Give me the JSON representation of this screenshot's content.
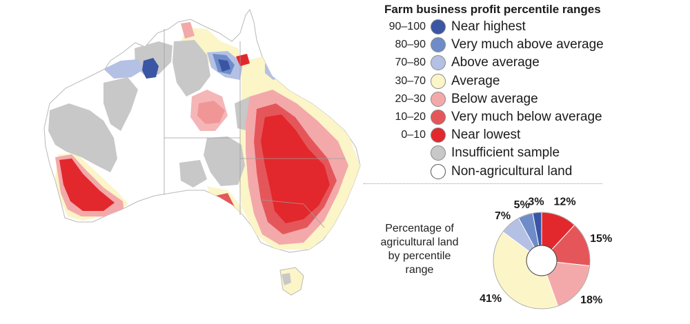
{
  "legend": {
    "title": "Farm business profit percentile ranges",
    "items": [
      {
        "range": "90–100",
        "label": "Near highest",
        "color": "#3a55a4",
        "key": "near-highest"
      },
      {
        "range": "80–90",
        "label": "Very much above average",
        "color": "#6f8cc9",
        "key": "very-much-above"
      },
      {
        "range": "70–80",
        "label": "Above average",
        "color": "#b4c1e4",
        "key": "above-average"
      },
      {
        "range": "30–70",
        "label": "Average",
        "color": "#fbf5c8",
        "key": "average"
      },
      {
        "range": "20–30",
        "label": "Below average",
        "color": "#f3a9aa",
        "key": "below-average"
      },
      {
        "range": "10–20",
        "label": "Very much below average",
        "color": "#e5565a",
        "key": "very-much-below"
      },
      {
        "range": "0–10",
        "label": "Near lowest",
        "color": "#e2282c",
        "key": "near-lowest"
      },
      {
        "range": "",
        "label": "Insufficient sample",
        "color": "#c8c8c8",
        "key": "insufficient"
      },
      {
        "range": "",
        "label": "Non-agricultural land",
        "color": "#ffffff",
        "key": "non-agricultural"
      }
    ]
  },
  "pie": {
    "title_lines": [
      "Percentage of",
      "agricultural land",
      "by percentile",
      "range"
    ],
    "slices": [
      {
        "label": "12%",
        "value": 12,
        "color": "#e2282c"
      },
      {
        "label": "15%",
        "value": 15,
        "color": "#e5565a"
      },
      {
        "label": "18%",
        "value": 18,
        "color": "#f3a9aa"
      },
      {
        "label": "41%",
        "value": 41,
        "color": "#fbf5c8"
      },
      {
        "label": "7%",
        "value": 7,
        "color": "#b4c1e4"
      },
      {
        "label": "5%",
        "value": 5,
        "color": "#6f8cc9"
      },
      {
        "label": "3%",
        "value": 3,
        "color": "#3a55a4"
      }
    ]
  }
}
